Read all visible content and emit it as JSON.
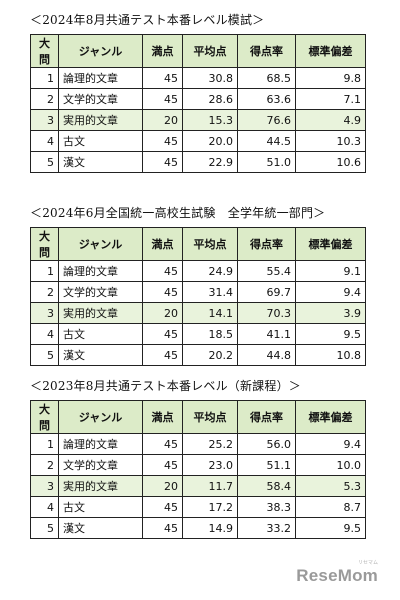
{
  "headers": [
    "大問",
    "ジャンル",
    "満点",
    "平均点",
    "得点率",
    "標準偏差"
  ],
  "sections": [
    {
      "title": "＜2024年8月共通テスト本番レベル模試＞",
      "rows": [
        {
          "no": "1",
          "genre": "論理的文章",
          "full": "45",
          "avg": "30.8",
          "rate": "68.5",
          "sd": "9.8"
        },
        {
          "no": "2",
          "genre": "文学的文章",
          "full": "45",
          "avg": "28.6",
          "rate": "63.6",
          "sd": "7.1"
        },
        {
          "no": "3",
          "genre": "実用的文章",
          "full": "20",
          "avg": "15.3",
          "rate": "76.6",
          "sd": "4.9"
        },
        {
          "no": "4",
          "genre": "古文",
          "full": "45",
          "avg": "20.0",
          "rate": "44.5",
          "sd": "10.3"
        },
        {
          "no": "5",
          "genre": "漢文",
          "full": "45",
          "avg": "22.9",
          "rate": "51.0",
          "sd": "10.6"
        }
      ]
    },
    {
      "title": "＜2024年6月全国統一高校生試験　全学年統一部門＞",
      "rows": [
        {
          "no": "1",
          "genre": "論理的文章",
          "full": "45",
          "avg": "24.9",
          "rate": "55.4",
          "sd": "9.1"
        },
        {
          "no": "2",
          "genre": "文学的文章",
          "full": "45",
          "avg": "31.4",
          "rate": "69.7",
          "sd": "9.4"
        },
        {
          "no": "3",
          "genre": "実用的文章",
          "full": "20",
          "avg": "14.1",
          "rate": "70.3",
          "sd": "3.9"
        },
        {
          "no": "4",
          "genre": "古文",
          "full": "45",
          "avg": "18.5",
          "rate": "41.1",
          "sd": "9.5"
        },
        {
          "no": "5",
          "genre": "漢文",
          "full": "45",
          "avg": "20.2",
          "rate": "44.8",
          "sd": "10.8"
        }
      ]
    },
    {
      "title": "＜2023年8月共通テスト本番レベル（新課程）＞",
      "rows": [
        {
          "no": "1",
          "genre": "論理的文章",
          "full": "45",
          "avg": "25.2",
          "rate": "56.0",
          "sd": "9.4"
        },
        {
          "no": "2",
          "genre": "文学的文章",
          "full": "45",
          "avg": "23.0",
          "rate": "51.1",
          "sd": "10.0"
        },
        {
          "no": "3",
          "genre": "実用的文章",
          "full": "20",
          "avg": "11.7",
          "rate": "58.4",
          "sd": "5.3"
        },
        {
          "no": "4",
          "genre": "古文",
          "full": "45",
          "avg": "17.2",
          "rate": "38.3",
          "sd": "8.7"
        },
        {
          "no": "5",
          "genre": "漢文",
          "full": "45",
          "avg": "14.9",
          "rate": "33.2",
          "sd": "9.5"
        }
      ]
    }
  ],
  "highlight_row_index": 2,
  "colors": {
    "header_bg": "#dcebc8",
    "highlight_bg": "#e9f3dc",
    "logo": "#9a9a9a"
  },
  "logo": {
    "text": "ReseMom",
    "subtext": "リセマム"
  }
}
